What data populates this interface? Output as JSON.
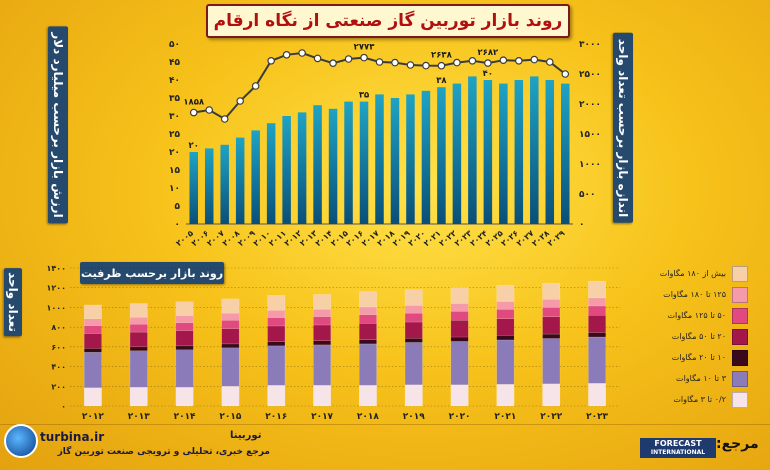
{
  "title": "روند بازار توربین گاز صنعتی از نگاه ارقام",
  "colors": {
    "bar_top": "#1fa3c4",
    "line": "#3b3b3b",
    "marker": "#ffffff",
    "label_bg": "#264a6e"
  },
  "chart_data": [
    {
      "type": "bar",
      "title": "روند بازار توربین گاز صنعتی از نگاه ارقام",
      "categories": [
        "۲۰۰۵",
        "۲۰۰۶",
        "۲۰۰۷",
        "۲۰۰۸",
        "۲۰۰۹",
        "۲۰۱۰",
        "۲۰۱۱",
        "۲۰۱۲",
        "۲۰۱۳",
        "۲۰۱۴",
        "۲۰۱۵",
        "۲۰۱۶",
        "۲۰۱۷",
        "۲۰۱۸",
        "۲۰۱۹",
        "۲۰۲۰",
        "۲۰۲۱",
        "۲۰۲۲",
        "۲۰۲۳",
        "۲۰۲۴",
        "۲۰۲۵",
        "۲۰۲۶",
        "۲۰۲۷",
        "۲۰۲۸",
        "۲۰۲۹"
      ],
      "series": [
        {
          "values": [
            20,
            21,
            22,
            24,
            26,
            28,
            30,
            31,
            33,
            32,
            34,
            34,
            36,
            35,
            36,
            37,
            38,
            39,
            41,
            40,
            39,
            40,
            41,
            40,
            39
          ]
        },
        {
          "values": [
            1858,
            1900,
            1750,
            2050,
            2300,
            2720,
            2820,
            2850,
            2760,
            2680,
            2750,
            2773,
            2700,
            2690,
            2650,
            2640,
            2638,
            2690,
            2720,
            2682,
            2730,
            2720,
            2740,
            2700,
            2500
          ]
        }
      ],
      "data_labels": [
        {
          "text": "۱۸۵۸"
        },
        {
          "text": "۲۷۷۳"
        },
        {
          "text": "۲۶۳۸"
        },
        {
          "text": "۲۶۸۲"
        },
        {
          "text": "۲۰"
        },
        {
          "text": "۳۵"
        },
        {
          "text": "۳۸"
        },
        {
          "text": "۴۰"
        }
      ],
      "y_left_label": "ارزش بازار برحسب میلیارد دلار",
      "y_right_label": "اندازه بازار برحسب تعداد واحد",
      "y_left_ticks": [
        "۰",
        "۵",
        "۱۰",
        "۱۵",
        "۲۰",
        "۲۵",
        "۳۰",
        "۳۵",
        "۴۰",
        "۴۵",
        "۵۰"
      ],
      "y_right_ticks": [
        "۰",
        "۵۰۰",
        "۱۰۰۰",
        "۱۵۰۰",
        "۲۰۰۰",
        "۲۵۰۰",
        "۳۰۰۰"
      ],
      "ylim_left": [
        0,
        50
      ],
      "ylim_right": [
        0,
        3000
      ]
    },
    {
      "type": "bar",
      "title": "روند بازار برحسب ظرفیت",
      "ylabel": "تعداد واحد",
      "categories": [
        "۲۰۱۲",
        "۲۰۱۳",
        "۲۰۱۴",
        "۲۰۱۵",
        "۲۰۱۶",
        "۲۰۱۷",
        "۲۰۱۸",
        "۲۰۱۹",
        "۲۰۲۰",
        "۲۰۲۱",
        "۲۰۲۲",
        "۲۰۲۳"
      ],
      "y_ticks": [
        "۰",
        "۲۰۰",
        "۴۰۰",
        "۶۰۰",
        "۸۰۰",
        "۱۰۰۰",
        "۱۲۰۰",
        "۱۴۰۰"
      ],
      "ylim": [
        0,
        1400
      ],
      "series": [
        {
          "name": "۰/۲ تا ۳ مگاوات",
          "color": "#f7e4e9",
          "values": [
            185,
            190,
            190,
            200,
            210,
            210,
            210,
            215,
            215,
            220,
            225,
            230
          ]
        },
        {
          "name": "۳ تا ۱۰ مگاوات",
          "color": "#8b7bb8",
          "values": [
            360,
            370,
            380,
            390,
            400,
            410,
            420,
            430,
            440,
            450,
            460,
            470
          ]
        },
        {
          "name": "۱۰ تا ۲۰ مگاوات",
          "color": "#3a0a1a",
          "values": [
            40,
            40,
            40,
            40,
            42,
            42,
            42,
            42,
            45,
            45,
            45,
            45
          ]
        },
        {
          "name": "۲۰ تا ۵۰ مگاوات",
          "color": "#a3174a",
          "values": [
            150,
            150,
            155,
            155,
            160,
            160,
            165,
            165,
            170,
            170,
            175,
            175
          ]
        },
        {
          "name": "۵۰ تا ۱۲۵ مگاوات",
          "color": "#e04a80",
          "values": [
            80,
            80,
            80,
            85,
            85,
            85,
            90,
            90,
            90,
            95,
            95,
            95
          ]
        },
        {
          "name": "۱۲۵ تا ۱۸۰ مگاوات",
          "color": "#f59aa8",
          "values": [
            70,
            70,
            72,
            72,
            75,
            75,
            78,
            78,
            80,
            80,
            82,
            82
          ]
        },
        {
          "name": "بیش از ۱۸۰ مگاوات",
          "color": "#f8d0a8",
          "values": [
            140,
            140,
            140,
            145,
            150,
            150,
            155,
            160,
            160,
            165,
            165,
            170
          ]
        }
      ]
    }
  ],
  "footer": {
    "url": "turbina.ir",
    "brand": "توربینا",
    "description": "مرجع خبری، تحلیلی و ترویجی صنعت توربین گاز",
    "reference": "مرجع:",
    "forecast_line1": "FORECAST",
    "forecast_line2": "INTERNATIONAL"
  }
}
